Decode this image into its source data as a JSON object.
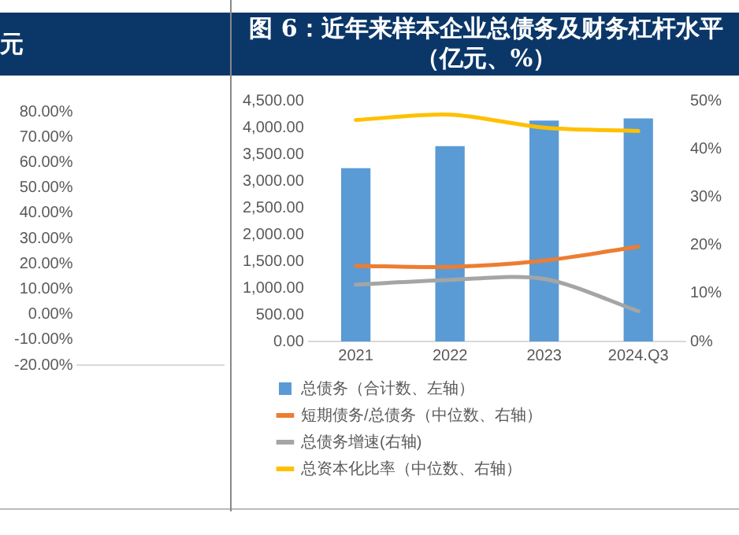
{
  "chart_data": [
    {
      "type": "line",
      "title": "元",
      "categories": [
        null
      ],
      "values": [
        null
      ],
      "ylim": [
        -20,
        80
      ],
      "yticks": [
        {
          "value": -20,
          "label": "-20.00%"
        },
        {
          "value": -10,
          "label": "-10.00%"
        },
        {
          "value": 0,
          "label": "0.00%"
        },
        {
          "value": 10,
          "label": "10.00%"
        },
        {
          "value": 20,
          "label": "20.00%"
        },
        {
          "value": 30,
          "label": "30.00%"
        },
        {
          "value": 40,
          "label": "40.00%"
        },
        {
          "value": 50,
          "label": "50.00%"
        },
        {
          "value": 60,
          "label": "60.00%"
        },
        {
          "value": 70,
          "label": "70.00%"
        },
        {
          "value": 80,
          "label": "80.00%"
        }
      ],
      "tick_labels": "y"
    },
    {
      "type": "bar",
      "title": "图 6：近年来样本企业总债务及财务杠杆水平（亿元、%）",
      "categories": [
        "2021",
        "2022",
        "2023",
        "2024.Q3"
      ],
      "series": [
        {
          "name": "总债务（合计数、左轴）",
          "color": "#5b9bd5",
          "values": [
            3240,
            3650,
            4130,
            4170
          ]
        },
        {
          "name": "短期债务/总债务（中位数、右轴）",
          "type": "line",
          "axis": "y2",
          "color": "#ed7d31",
          "values": [
            15.7,
            15.5,
            16.8,
            19.7
          ]
        },
        {
          "name": "总债务增速(右轴)",
          "type": "line",
          "axis": "y2",
          "color": "#a5a5a5",
          "values": [
            11.8,
            12.8,
            13.0,
            6.3
          ]
        },
        {
          "name": "总资本化比率（中位数、右轴）",
          "type": "line",
          "axis": "y2",
          "color": "#ffc000",
          "values": [
            46.0,
            47.1,
            44.4,
            43.7
          ]
        }
      ],
      "ylim": [
        0,
        4500
      ],
      "yticks": [
        {
          "value": 0,
          "label": "0.00"
        },
        {
          "value": 500,
          "label": "500.00"
        },
        {
          "value": 1000,
          "label": "1,000.00"
        },
        {
          "value": 1500,
          "label": "1,500.00"
        },
        {
          "value": 2000,
          "label": "2,000.00"
        },
        {
          "value": 2500,
          "label": "2,500.00"
        },
        {
          "value": 3000,
          "label": "3,000.00"
        },
        {
          "value": 3500,
          "label": "3,500.00"
        },
        {
          "value": 4000,
          "label": "4,000.00"
        },
        {
          "value": 4500,
          "label": "4,500.00"
        }
      ],
      "y2lim": [
        0,
        50
      ],
      "y2ticks": [
        {
          "value": 0,
          "label": "0%"
        },
        {
          "value": 10,
          "label": "10%"
        },
        {
          "value": 20,
          "label": "20%"
        },
        {
          "value": 30,
          "label": "30%"
        },
        {
          "value": 40,
          "label": "40%"
        },
        {
          "value": 50,
          "label": "50%"
        }
      ],
      "grid": false,
      "legend": "bottom",
      "marker": "none",
      "line_style": "solid"
    }
  ]
}
